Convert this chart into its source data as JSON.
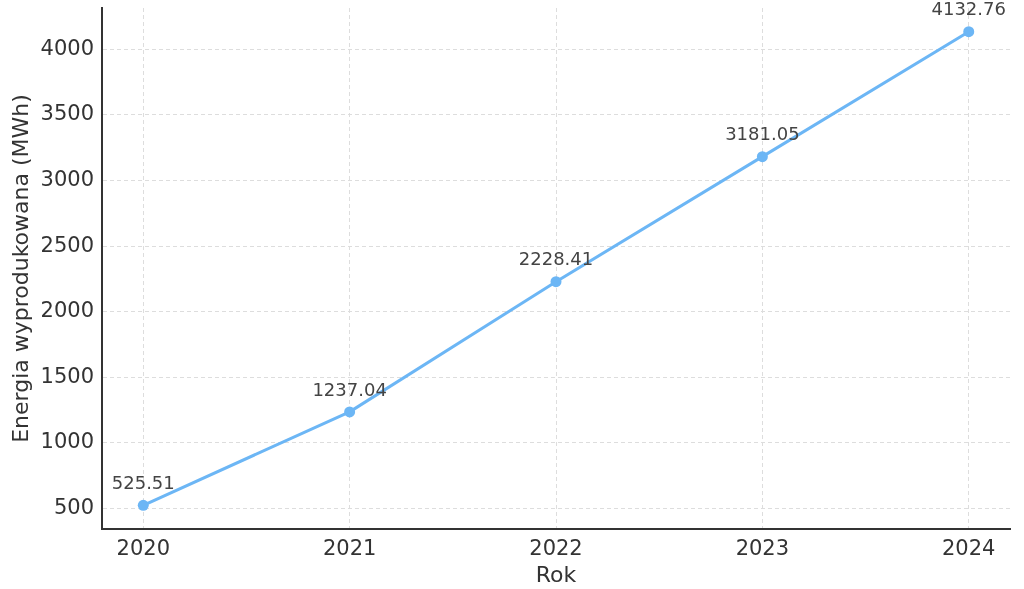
{
  "chart_data": {
    "type": "line",
    "xlabel": "Rok",
    "ylabel": "Energia wyprodukowana (MWh)",
    "x": [
      2020,
      2021,
      2022,
      2023,
      2024
    ],
    "series": [
      {
        "color": "#6cb6f5",
        "values": [
          525.51,
          1237.04,
          2228.41,
          3181.05,
          4132.76
        ]
      }
    ],
    "xlim": [
      2019.8,
      2024.2
    ],
    "xticks": [
      2020,
      2021,
      2022,
      2023,
      2024
    ],
    "ylim": [
      345,
      4313
    ],
    "yticks": [
      500,
      1000,
      1500,
      2000,
      2500,
      3000,
      3500,
      4000
    ],
    "grid": true,
    "marker": "circle",
    "line_style": "solid",
    "data_labels": true
  }
}
